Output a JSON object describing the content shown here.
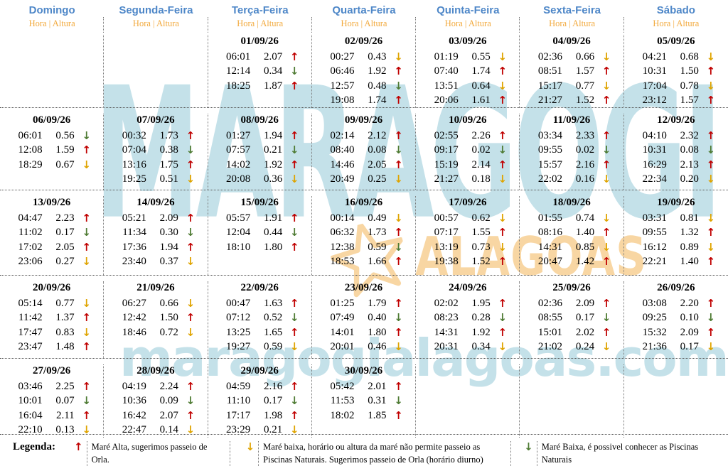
{
  "header": {
    "days": [
      "Domingo",
      "Segunda-Feira",
      "Terça-Feira",
      "Quarta-Feira",
      "Quinta-Feira",
      "Sexta-Feira",
      "Sábado"
    ],
    "subheader": "Hora | Altura"
  },
  "weeks": [
    [
      null,
      null,
      {
        "date": "01/09/26",
        "tides": [
          {
            "time": "06:01",
            "height": "2.07",
            "type": "high"
          },
          {
            "time": "12:14",
            "height": "0.34",
            "type": "low-ok"
          },
          {
            "time": "18:25",
            "height": "1.87",
            "type": "high"
          }
        ]
      },
      {
        "date": "02/09/26",
        "tides": [
          {
            "time": "00:27",
            "height": "0.43",
            "type": "low-no"
          },
          {
            "time": "06:46",
            "height": "1.92",
            "type": "high"
          },
          {
            "time": "12:57",
            "height": "0.48",
            "type": "low-ok"
          },
          {
            "time": "19:08",
            "height": "1.74",
            "type": "high"
          }
        ]
      },
      {
        "date": "03/09/26",
        "tides": [
          {
            "time": "01:19",
            "height": "0.55",
            "type": "low-no"
          },
          {
            "time": "07:40",
            "height": "1.74",
            "type": "high"
          },
          {
            "time": "13:51",
            "height": "0.64",
            "type": "low-no"
          },
          {
            "time": "20:06",
            "height": "1.61",
            "type": "high"
          }
        ]
      },
      {
        "date": "04/09/26",
        "tides": [
          {
            "time": "02:36",
            "height": "0.66",
            "type": "low-no"
          },
          {
            "time": "08:51",
            "height": "1.57",
            "type": "high"
          },
          {
            "time": "15:17",
            "height": "0.77",
            "type": "low-no"
          },
          {
            "time": "21:27",
            "height": "1.52",
            "type": "high"
          }
        ]
      },
      {
        "date": "05/09/26",
        "tides": [
          {
            "time": "04:21",
            "height": "0.68",
            "type": "low-no"
          },
          {
            "time": "10:31",
            "height": "1.50",
            "type": "high"
          },
          {
            "time": "17:04",
            "height": "0.78",
            "type": "low-no"
          },
          {
            "time": "23:12",
            "height": "1.57",
            "type": "high"
          }
        ]
      }
    ],
    [
      {
        "date": "06/09/26",
        "tides": [
          {
            "time": "06:01",
            "height": "0.56",
            "type": "low-ok"
          },
          {
            "time": "12:08",
            "height": "1.59",
            "type": "high"
          },
          {
            "time": "18:29",
            "height": "0.67",
            "type": "low-no"
          }
        ]
      },
      {
        "date": "07/09/26",
        "tides": [
          {
            "time": "00:32",
            "height": "1.73",
            "type": "high"
          },
          {
            "time": "07:04",
            "height": "0.38",
            "type": "low-ok"
          },
          {
            "time": "13:16",
            "height": "1.75",
            "type": "high"
          },
          {
            "time": "19:25",
            "height": "0.51",
            "type": "low-no"
          }
        ]
      },
      {
        "date": "08/09/26",
        "tides": [
          {
            "time": "01:27",
            "height": "1.94",
            "type": "high"
          },
          {
            "time": "07:57",
            "height": "0.21",
            "type": "low-ok"
          },
          {
            "time": "14:02",
            "height": "1.92",
            "type": "high"
          },
          {
            "time": "20:08",
            "height": "0.36",
            "type": "low-no"
          }
        ]
      },
      {
        "date": "09/09/26",
        "tides": [
          {
            "time": "02:14",
            "height": "2.12",
            "type": "high"
          },
          {
            "time": "08:40",
            "height": "0.08",
            "type": "low-ok"
          },
          {
            "time": "14:46",
            "height": "2.05",
            "type": "high"
          },
          {
            "time": "20:49",
            "height": "0.25",
            "type": "low-no"
          }
        ]
      },
      {
        "date": "10/09/26",
        "tides": [
          {
            "time": "02:55",
            "height": "2.26",
            "type": "high"
          },
          {
            "time": "09:17",
            "height": "0.02",
            "type": "low-ok"
          },
          {
            "time": "15:19",
            "height": "2.14",
            "type": "high"
          },
          {
            "time": "21:27",
            "height": "0.18",
            "type": "low-no"
          }
        ]
      },
      {
        "date": "11/09/26",
        "tides": [
          {
            "time": "03:34",
            "height": "2.33",
            "type": "high"
          },
          {
            "time": "09:55",
            "height": "0.02",
            "type": "low-ok"
          },
          {
            "time": "15:57",
            "height": "2.16",
            "type": "high"
          },
          {
            "time": "22:02",
            "height": "0.16",
            "type": "low-no"
          }
        ]
      },
      {
        "date": "12/09/26",
        "tides": [
          {
            "time": "04:10",
            "height": "2.32",
            "type": "high"
          },
          {
            "time": "10:31",
            "height": "0.08",
            "type": "low-ok"
          },
          {
            "time": "16:29",
            "height": "2.13",
            "type": "high"
          },
          {
            "time": "22:34",
            "height": "0.20",
            "type": "low-no"
          }
        ]
      }
    ],
    [
      {
        "date": "13/09/26",
        "tides": [
          {
            "time": "04:47",
            "height": "2.23",
            "type": "high"
          },
          {
            "time": "11:02",
            "height": "0.17",
            "type": "low-ok"
          },
          {
            "time": "17:02",
            "height": "2.05",
            "type": "high"
          },
          {
            "time": "23:06",
            "height": "0.27",
            "type": "low-no"
          }
        ]
      },
      {
        "date": "14/09/26",
        "tides": [
          {
            "time": "05:21",
            "height": "2.09",
            "type": "high"
          },
          {
            "time": "11:34",
            "height": "0.30",
            "type": "low-ok"
          },
          {
            "time": "17:36",
            "height": "1.94",
            "type": "high"
          },
          {
            "time": "23:40",
            "height": "0.37",
            "type": "low-no"
          }
        ]
      },
      {
        "date": "15/09/26",
        "tides": [
          {
            "time": "05:57",
            "height": "1.91",
            "type": "high"
          },
          {
            "time": "12:04",
            "height": "0.44",
            "type": "low-ok"
          },
          {
            "time": "18:10",
            "height": "1.80",
            "type": "high"
          }
        ]
      },
      {
        "date": "16/09/26",
        "tides": [
          {
            "time": "00:14",
            "height": "0.49",
            "type": "low-no"
          },
          {
            "time": "06:32",
            "height": "1.73",
            "type": "high"
          },
          {
            "time": "12:38",
            "height": "0.59",
            "type": "low-ok"
          },
          {
            "time": "18:53",
            "height": "1.66",
            "type": "high"
          }
        ]
      },
      {
        "date": "17/09/26",
        "tides": [
          {
            "time": "00:57",
            "height": "0.62",
            "type": "low-no"
          },
          {
            "time": "07:17",
            "height": "1.55",
            "type": "high"
          },
          {
            "time": "13:19",
            "height": "0.73",
            "type": "low-no"
          },
          {
            "time": "19:38",
            "height": "1.52",
            "type": "high"
          }
        ]
      },
      {
        "date": "18/09/26",
        "tides": [
          {
            "time": "01:55",
            "height": "0.74",
            "type": "low-no"
          },
          {
            "time": "08:16",
            "height": "1.40",
            "type": "high"
          },
          {
            "time": "14:31",
            "height": "0.85",
            "type": "low-no"
          },
          {
            "time": "20:47",
            "height": "1.42",
            "type": "high"
          }
        ]
      },
      {
        "date": "19/09/26",
        "tides": [
          {
            "time": "03:31",
            "height": "0.81",
            "type": "low-no"
          },
          {
            "time": "09:55",
            "height": "1.32",
            "type": "high"
          },
          {
            "time": "16:12",
            "height": "0.89",
            "type": "low-no"
          },
          {
            "time": "22:21",
            "height": "1.40",
            "type": "high"
          }
        ]
      }
    ],
    [
      {
        "date": "20/09/26",
        "tides": [
          {
            "time": "05:14",
            "height": "0.77",
            "type": "low-no"
          },
          {
            "time": "11:42",
            "height": "1.37",
            "type": "high"
          },
          {
            "time": "17:47",
            "height": "0.83",
            "type": "low-no"
          },
          {
            "time": "23:47",
            "height": "1.48",
            "type": "high"
          }
        ]
      },
      {
        "date": "21/09/26",
        "tides": [
          {
            "time": "06:27",
            "height": "0.66",
            "type": "low-no"
          },
          {
            "time": "12:42",
            "height": "1.50",
            "type": "high"
          },
          {
            "time": "18:46",
            "height": "0.72",
            "type": "low-no"
          }
        ]
      },
      {
        "date": "22/09/26",
        "tides": [
          {
            "time": "00:47",
            "height": "1.63",
            "type": "high"
          },
          {
            "time": "07:12",
            "height": "0.52",
            "type": "low-ok"
          },
          {
            "time": "13:25",
            "height": "1.65",
            "type": "high"
          },
          {
            "time": "19:27",
            "height": "0.59",
            "type": "low-no"
          }
        ]
      },
      {
        "date": "23/09/26",
        "tides": [
          {
            "time": "01:25",
            "height": "1.79",
            "type": "high"
          },
          {
            "time": "07:49",
            "height": "0.40",
            "type": "low-ok"
          },
          {
            "time": "14:01",
            "height": "1.80",
            "type": "high"
          },
          {
            "time": "20:01",
            "height": "0.46",
            "type": "low-no"
          }
        ]
      },
      {
        "date": "24/09/26",
        "tides": [
          {
            "time": "02:02",
            "height": "1.95",
            "type": "high"
          },
          {
            "time": "08:23",
            "height": "0.28",
            "type": "low-ok"
          },
          {
            "time": "14:31",
            "height": "1.92",
            "type": "high"
          },
          {
            "time": "20:31",
            "height": "0.34",
            "type": "low-no"
          }
        ]
      },
      {
        "date": "25/09/26",
        "tides": [
          {
            "time": "02:36",
            "height": "2.09",
            "type": "high"
          },
          {
            "time": "08:55",
            "height": "0.17",
            "type": "low-ok"
          },
          {
            "time": "15:01",
            "height": "2.02",
            "type": "high"
          },
          {
            "time": "21:02",
            "height": "0.24",
            "type": "low-no"
          }
        ]
      },
      {
        "date": "26/09/26",
        "tides": [
          {
            "time": "03:08",
            "height": "2.20",
            "type": "high"
          },
          {
            "time": "09:25",
            "height": "0.10",
            "type": "low-ok"
          },
          {
            "time": "15:32",
            "height": "2.09",
            "type": "high"
          },
          {
            "time": "21:36",
            "height": "0.17",
            "type": "low-no"
          }
        ]
      }
    ],
    [
      {
        "date": "27/09/26",
        "tides": [
          {
            "time": "03:46",
            "height": "2.25",
            "type": "high"
          },
          {
            "time": "10:01",
            "height": "0.07",
            "type": "low-ok"
          },
          {
            "time": "16:04",
            "height": "2.11",
            "type": "high"
          },
          {
            "time": "22:10",
            "height": "0.13",
            "type": "low-no"
          }
        ]
      },
      {
        "date": "28/09/26",
        "tides": [
          {
            "time": "04:19",
            "height": "2.24",
            "type": "high"
          },
          {
            "time": "10:36",
            "height": "0.09",
            "type": "low-ok"
          },
          {
            "time": "16:42",
            "height": "2.07",
            "type": "high"
          },
          {
            "time": "22:47",
            "height": "0.14",
            "type": "low-no"
          }
        ]
      },
      {
        "date": "29/09/26",
        "tides": [
          {
            "time": "04:59",
            "height": "2.16",
            "type": "high"
          },
          {
            "time": "11:10",
            "height": "0.17",
            "type": "low-ok"
          },
          {
            "time": "17:17",
            "height": "1.98",
            "type": "high"
          },
          {
            "time": "23:29",
            "height": "0.21",
            "type": "low-no"
          }
        ]
      },
      {
        "date": "30/09/26",
        "tides": [
          {
            "time": "05:42",
            "height": "2.01",
            "type": "high"
          },
          {
            "time": "11:53",
            "height": "0.31",
            "type": "low-ok"
          },
          {
            "time": "18:02",
            "height": "1.85",
            "type": "high"
          }
        ]
      },
      null,
      null,
      null
    ]
  ],
  "legend": {
    "title": "Legenda:",
    "items": [
      {
        "type": "high",
        "arrow": "up",
        "text": "Maré Alta, sugerimos passeio de Orla."
      },
      {
        "type": "low-no",
        "arrow": "down",
        "text": "Maré baixa, horário ou altura da maré não permite passeio as Piscinas Naturais. Sugerimos passeio de Orla (horário diurno)"
      },
      {
        "type": "low-ok",
        "arrow": "down",
        "text": "Maré Baixa, é possivel conhecer as Piscinas Naturais"
      }
    ]
  },
  "watermark": {
    "line1": "MARAGOGI",
    "line2": "ALAGOAS",
    "url": "maragogialagoas.com"
  },
  "icons": {
    "up_arrow": "↑",
    "down_arrow": "↓",
    "starfish": "starfish-outline"
  },
  "colors": {
    "day_header_blue": "#4E87C8",
    "subheader_gold": "#F2A93C",
    "high_tide_arrow_red": "#C00000",
    "low_tide_no_arrow_gold": "#DFA400",
    "low_tide_ok_arrow_green": "#4E7B33",
    "watermark_blue": "#BADCE5",
    "watermark_orange": "#F8D49E"
  }
}
